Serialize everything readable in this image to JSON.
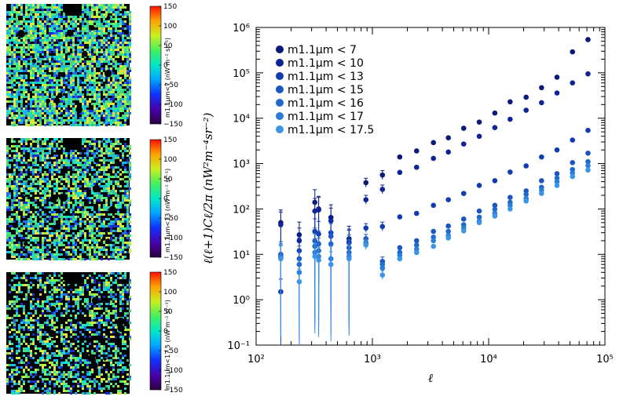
{
  "colors": {
    "series": [
      "#0a1a7a",
      "#0d2396",
      "#123bb0",
      "#1a55c0",
      "#2168cc",
      "#2a7dd8",
      "#3b95e6"
    ],
    "map_black": "#000000"
  },
  "maps": [
    {
      "label": "m1.1μm<7 (nW m⁻² sr⁻¹)",
      "seed": 11,
      "density": 0.78
    },
    {
      "label": "m1.1μm<13 (nW m⁻² sr⁻¹)",
      "seed": 29,
      "density": 0.62
    },
    {
      "label": "m1.1μm<17.5 (nW m⁻² sr⁻¹)",
      "seed": 47,
      "density": 0.45
    }
  ],
  "colorbar": {
    "ticks": [
      "150",
      "100",
      "50",
      "0",
      "−50",
      "−100",
      "−150"
    ],
    "tick_values": [
      150,
      100,
      50,
      0,
      -50,
      -100,
      -150
    ],
    "range": [
      -150,
      150
    ]
  },
  "chart_data": {
    "type": "scatter",
    "xlabel": "ℓ",
    "ylabel": "ℓ(ℓ+1)Cℓ/2π   (nW²m⁻⁴sr⁻²)",
    "xscale": "log",
    "yscale": "log",
    "xlim": [
      100,
      100000
    ],
    "ylim": [
      0.1,
      1000000
    ],
    "x_ticks": [
      100,
      1000,
      10000,
      100000
    ],
    "x_tick_labels": [
      "10²",
      "10³",
      "10⁴",
      "10⁵"
    ],
    "y_ticks": [
      0.1,
      1,
      10,
      100,
      1000,
      10000,
      100000,
      1000000
    ],
    "y_tick_labels": [
      "10⁻¹",
      "10⁰",
      "10¹",
      "10²",
      "10³",
      "10⁴",
      "10⁵",
      "10⁶"
    ],
    "legend_position": "top-left",
    "x": [
      163,
      235,
      320,
      345,
      440,
      630,
      880,
      1220,
      1720,
      2400,
      3350,
      4500,
      6100,
      8300,
      11300,
      15300,
      21000,
      28500,
      38700,
      52600,
      71500
    ],
    "series": [
      {
        "name": "m1.1μm < 7",
        "y": [
          50,
          27,
          140,
          100,
          65,
          22,
          380,
          560,
          1400,
          1900,
          2900,
          3700,
          6000,
          8200,
          13000,
          23000,
          29000,
          47000,
          80000,
          290000,
          540000
        ]
      },
      {
        "name": "m1.1μm < 10",
        "y": [
          45,
          20,
          90,
          95,
          55,
          18,
          160,
          270,
          640,
          830,
          1300,
          1800,
          2700,
          4000,
          6200,
          9500,
          15000,
          22000,
          36000,
          60000,
          95000
        ]
      },
      {
        "name": "m1.1μm < 13",
        "y": [
          1.5,
          12,
          32,
          28,
          30,
          19,
          38,
          41,
          67,
          80,
          120,
          160,
          220,
          330,
          420,
          650,
          890,
          1400,
          2000,
          3300,
          5400
        ]
      },
      {
        "name": "m1.1μm < 15",
        "y": [
          10,
          8,
          20,
          17,
          25,
          14,
          22,
          7,
          14,
          20,
          32,
          42,
          60,
          90,
          120,
          180,
          250,
          420,
          600,
          1050,
          1700
        ]
      },
      {
        "name": "m1.1μm < 16",
        "y": [
          9,
          6,
          15,
          12,
          17,
          11,
          18,
          6,
          11,
          16,
          24,
          32,
          45,
          66,
          98,
          140,
          210,
          300,
          480,
          740,
          1100
        ]
      },
      {
        "name": "m1.1μm < 17",
        "y": [
          8.5,
          4,
          11,
          9,
          8,
          9,
          17,
          5,
          9.5,
          13,
          20,
          26,
          38,
          54,
          80,
          120,
          170,
          260,
          400,
          620,
          900
        ]
      },
      {
        "name": "m1.1μm < 17.5",
        "y": [
          8,
          2.5,
          9,
          7.5,
          6,
          8,
          16,
          3.5,
          8,
          11,
          15,
          23,
          33,
          50,
          70,
          100,
          150,
          220,
          330,
          520,
          720
        ]
      }
    ]
  }
}
